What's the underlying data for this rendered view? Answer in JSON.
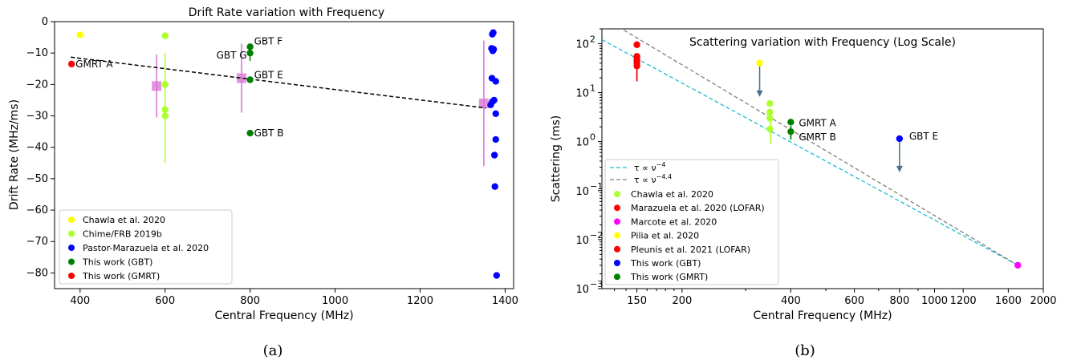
{
  "chart_data": [
    {
      "type": "scatter",
      "panel_label": "(a)",
      "title": "Drift Rate variation with Frequency",
      "xlabel": "Central Frequency (MHz)",
      "ylabel": "Drift Rate (MHz/ms)",
      "xlim": [
        340,
        1420
      ],
      "ylim": [
        -85,
        0
      ],
      "xticks": [
        400,
        600,
        800,
        1000,
        1200,
        1400
      ],
      "yticks": [
        0,
        -10,
        -20,
        -30,
        -40,
        -50,
        -60,
        -70,
        -80
      ],
      "legend_position": "lower-left",
      "series": [
        {
          "name": "Chawla et al. 2020",
          "color": "#ffff00",
          "points": [
            {
              "x": 400,
              "y": -4.2
            }
          ]
        },
        {
          "name": "Chime/FRB 2019b",
          "color": "#adff2f",
          "points": [
            {
              "x": 600,
              "y": -4.5
            },
            {
              "x": 600,
              "y": -20
            },
            {
              "x": 600,
              "y": -28
            },
            {
              "x": 600,
              "y": -30
            }
          ],
          "error_bars": [
            {
              "x": 600,
              "y": -20,
              "ylow": -45,
              "yhigh": -10
            }
          ]
        },
        {
          "name": "Pastor-Marazuela et al. 2020",
          "color": "#0000ff",
          "points": [
            {
              "x": 1370,
              "y": -4
            },
            {
              "x": 1372,
              "y": -3.5
            },
            {
              "x": 1368,
              "y": -8.5
            },
            {
              "x": 1371,
              "y": -9.3
            },
            {
              "x": 1373,
              "y": -8.8
            },
            {
              "x": 1369,
              "y": -18
            },
            {
              "x": 1378,
              "y": -19
            },
            {
              "x": 1370,
              "y": -25.5
            },
            {
              "x": 1374,
              "y": -25
            },
            {
              "x": 1366,
              "y": -26.5
            },
            {
              "x": 1378,
              "y": -29.3
            },
            {
              "x": 1378,
              "y": -37.5
            },
            {
              "x": 1375,
              "y": -42.5
            },
            {
              "x": 1376,
              "y": -52.5
            },
            {
              "x": 1380,
              "y": -80.8
            }
          ]
        },
        {
          "name": "This work (GBT)",
          "color": "#008000",
          "points": [
            {
              "x": 800,
              "y": -8
            },
            {
              "x": 800,
              "y": -10
            },
            {
              "x": 800,
              "y": -18.5
            },
            {
              "x": 800,
              "y": -35.5
            }
          ],
          "error_bars": [
            {
              "x": 800,
              "y": -10,
              "ylow": -12.5,
              "yhigh": -7.5
            }
          ]
        },
        {
          "name": "This work (GMRT)",
          "color": "#ff0000",
          "points": [
            {
              "x": 380,
              "y": -13.5
            }
          ]
        }
      ],
      "binned": {
        "color": "#da70d6",
        "points": [
          {
            "x": 580,
            "y": -20.5,
            "ylow": -30.5,
            "yhigh": -10.5
          },
          {
            "x": 780,
            "y": -18,
            "ylow": -29,
            "yhigh": -7
          },
          {
            "x": 1350,
            "y": -26,
            "ylow": -46,
            "yhigh": -6
          }
        ]
      },
      "fit_line": {
        "x": [
          378,
          1355
        ],
        "y": [
          -11.3,
          -27.5
        ],
        "style": "dashed",
        "color": "#000000"
      },
      "annotations": [
        {
          "text": "GMRT A",
          "x": 380,
          "y": -13.5
        },
        {
          "text": "GBT F",
          "x": 800,
          "y": -8
        },
        {
          "text": "GBT G",
          "x": 800,
          "y": -10
        },
        {
          "text": "GBT E",
          "x": 800,
          "y": -18.5
        },
        {
          "text": "GBT B",
          "x": 800,
          "y": -35.5
        }
      ]
    },
    {
      "type": "scatter",
      "panel_label": "(b)",
      "title": "Scattering variation with Frequency (Log Scale)",
      "xlabel": "Central Frequency (MHz)",
      "ylabel": "Scattering (ms)",
      "xscale": "log",
      "yscale": "log",
      "xlim": [
        120,
        2000
      ],
      "ylim": [
        0.001,
        200
      ],
      "xticks": [
        150,
        200,
        400,
        600,
        800,
        1000,
        1200,
        1600,
        2000
      ],
      "xtick_labels": [
        "150",
        "200",
        "400",
        "600",
        "800",
        "1000",
        "1200",
        "1600",
        "2000"
      ],
      "yticks": [
        0.001,
        0.01,
        0.1,
        1,
        10,
        100
      ],
      "ytick_labels": [
        "10",
        "10",
        "10",
        "10",
        "10",
        "10"
      ],
      "ytick_exponents": [
        "−3",
        "−2",
        "−1",
        "0",
        "1",
        "2"
      ],
      "legend_position": "lower-left",
      "lines": [
        {
          "name": "τ ∝ ν",
          "exponent": "−4",
          "slope": -4,
          "color": "#17becf",
          "style": "dashed",
          "x": [
            120,
            1700
          ],
          "y_end": 0.003
        },
        {
          "name": "τ ∝ ν",
          "exponent": "−4.4",
          "slope": -4.4,
          "color": "#7f7f7f",
          "style": "dashed",
          "x": [
            120,
            1700
          ],
          "y_end": 0.003
        }
      ],
      "series": [
        {
          "name": "Chawla et al. 2020",
          "color": "#adff2f",
          "points": [
            {
              "x": 350,
              "y": 6
            },
            {
              "x": 350,
              "y": 4
            },
            {
              "x": 350,
              "y": 3
            },
            {
              "x": 350,
              "y": 1.8
            }
          ],
          "error_bars": [
            {
              "x": 352,
              "y": 3,
              "ylow": 0.9,
              "yhigh": 4.5
            }
          ]
        },
        {
          "name": "Marazuela et al. 2020 (LOFAR)",
          "color": "#ff0000",
          "points": [
            {
              "x": 150,
              "y": 55
            },
            {
              "x": 150,
              "y": 50
            },
            {
              "x": 150,
              "y": 45
            },
            {
              "x": 150,
              "y": 40
            },
            {
              "x": 150,
              "y": 35
            }
          ],
          "error_bars": [
            {
              "x": 150,
              "y": 35,
              "ylow": 17,
              "yhigh": 55
            }
          ]
        },
        {
          "name": "Marcote et al. 2020",
          "color": "#ff00ff",
          "points": [
            {
              "x": 1700,
              "y": 0.003
            }
          ]
        },
        {
          "name": "Pilia et al. 2020",
          "color": "#ffff00",
          "points": [
            {
              "x": 328,
              "y": 40
            }
          ],
          "upper_limit": true
        },
        {
          "name": "Pleunis et al. 2021 (LOFAR)",
          "color": "#ff0000",
          "points": [
            {
              "x": 150,
              "y": 95
            }
          ]
        },
        {
          "name": "This work (GBT)",
          "color": "#0000ff",
          "points": [
            {
              "x": 800,
              "y": 1.15
            }
          ],
          "upper_limit": true
        },
        {
          "name": "This work (GMRT)",
          "color": "#008000",
          "points": [
            {
              "x": 400,
              "y": 2.5
            },
            {
              "x": 400,
              "y": 1.6
            }
          ],
          "error_bars": [
            {
              "x": 400,
              "y": 1.6,
              "ylow": 1.1,
              "yhigh": 2.1
            }
          ]
        }
      ],
      "annotations": [
        {
          "text": "GMRT A",
          "x": 400,
          "y": 2.5
        },
        {
          "text": "GMRT B",
          "x": 400,
          "y": 1.6
        },
        {
          "text": "GBT E",
          "x": 800,
          "y": 1.15
        }
      ]
    }
  ]
}
